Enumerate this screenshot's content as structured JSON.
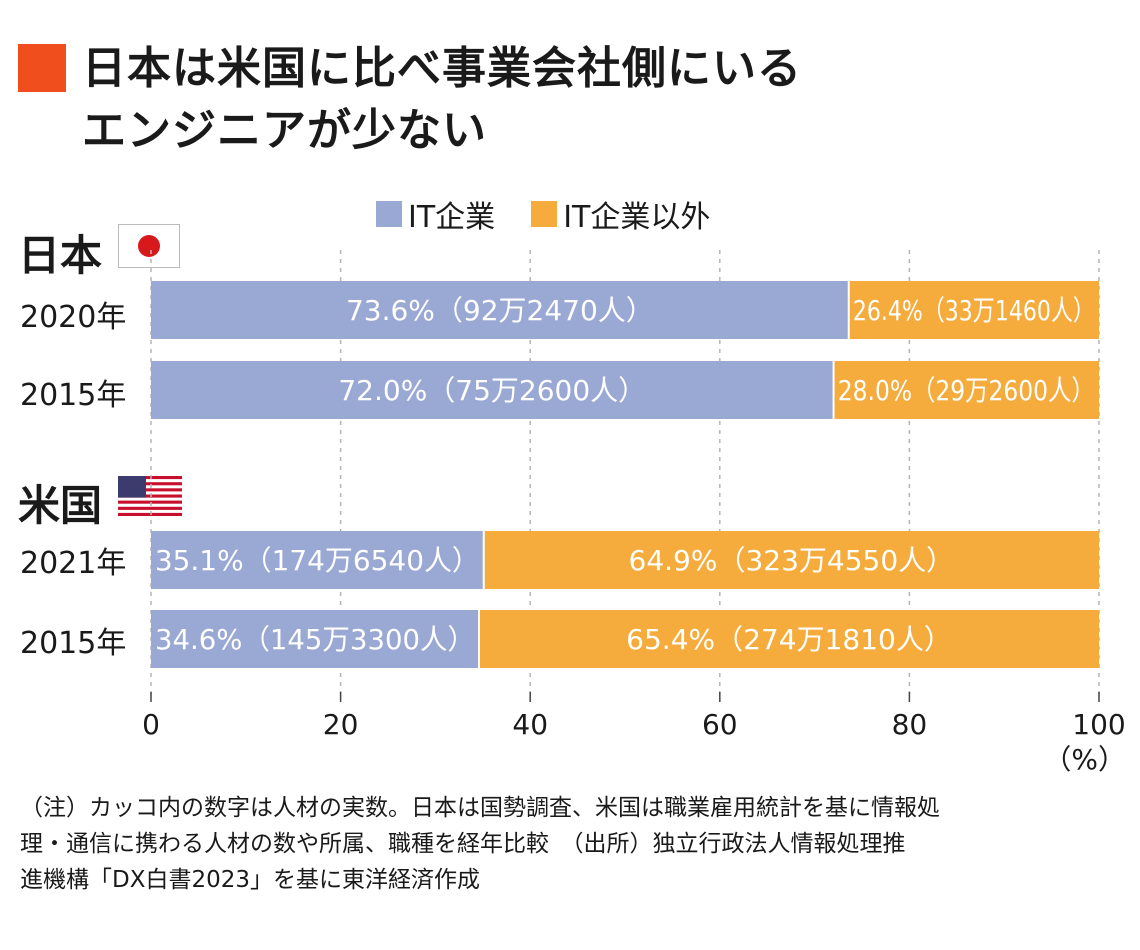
{
  "title": [
    "日本は米国に比べ事業会社側にいる",
    "エンジニアが少ない"
  ],
  "legend": [
    {
      "name": "IT企業",
      "color": "#9aa8d4"
    },
    {
      "name": "IT企業以外",
      "color": "#f5ac3d"
    }
  ],
  "groups": [
    {
      "name": "日本",
      "flag": "japan-flag-icon"
    },
    {
      "name": "米国",
      "flag": "us-flag-icon"
    }
  ],
  "x_unit": "（%）",
  "note": [
    "（注）カッコ内の数字は人材の実数。日本は国勢調査、米国は職業雇用統計を基に情報処",
    "理・通信に携わる人材の数や所属、職種を経年比較　（出所）独立行政法人情報処理推",
    "進機構「DX白書2023」を基に東洋経済作成"
  ],
  "chart_data": {
    "type": "bar",
    "orientation": "horizontal",
    "stacked": true,
    "categories": [
      "2020年",
      "2015年",
      "2021年",
      "2015年"
    ],
    "category_groups": [
      "日本",
      "日本",
      "米国",
      "米国"
    ],
    "series": [
      {
        "name": "IT企業",
        "values": [
          73.6,
          72.0,
          35.1,
          34.6
        ],
        "labels": [
          "73.6%（92万2470人）",
          "72.0%（75万2600人）",
          "35.1%（174万6540人）",
          "34.6%（145万3300人）"
        ]
      },
      {
        "name": "IT企業以外",
        "values": [
          26.4,
          28.0,
          64.9,
          65.4
        ],
        "labels": [
          "26.4%（33万1460人）",
          "28.0%（29万2600人）",
          "64.9%（323万4550人）",
          "65.4%（274万1810人）"
        ]
      }
    ],
    "xlim": [
      0,
      100
    ],
    "xticks": [
      "0",
      "20",
      "40",
      "60",
      "80",
      "100"
    ],
    "grid": true,
    "legend_position": "top"
  }
}
